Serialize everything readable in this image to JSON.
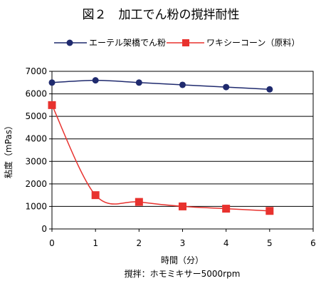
{
  "chart_data": {
    "type": "line",
    "title": "図２　加工でん粉の撹拌耐性",
    "xlabel": "時間（分）",
    "ylabel": "粘度（mPas）",
    "note": "撹拌：ホモミキサー5000rpm",
    "xlim": [
      0,
      6
    ],
    "ylim": [
      0,
      7000
    ],
    "x_ticks": [
      0,
      1,
      2,
      3,
      4,
      5,
      6
    ],
    "y_ticks": [
      0,
      1000,
      2000,
      3000,
      4000,
      5000,
      6000,
      7000
    ],
    "grid": "horizontal",
    "legend_position": "top",
    "x": [
      0,
      1,
      2,
      3,
      4,
      5
    ],
    "series": [
      {
        "name": "エーテル架橋でん粉",
        "values": [
          6500,
          6600,
          6500,
          6400,
          6300,
          6200
        ],
        "color": "#1f2a6e",
        "marker": "circle"
      },
      {
        "name": "ワキシーコーン（原料）",
        "values": [
          5500,
          1500,
          1200,
          1000,
          900,
          800
        ],
        "color": "#e8322e",
        "marker": "square"
      }
    ]
  }
}
